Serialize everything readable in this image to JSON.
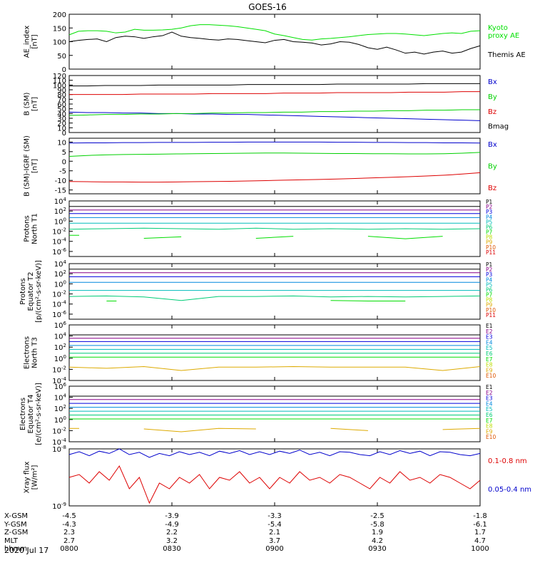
{
  "title": "GOES-16",
  "date_label": "2020 Jul 17",
  "colors": {
    "black": "#000000",
    "green": "#00e000",
    "blue": "#0000cc",
    "red": "#dd0000",
    "p": [
      "#000000",
      "#880088",
      "#0000dd",
      "#0088dd",
      "#00bbbb",
      "#00cc77",
      "#00dd00",
      "#bbdd00",
      "#ddaa00",
      "#dd5500",
      "#dd0000"
    ]
  },
  "x_axis": {
    "ticks": [
      "0800",
      "0830",
      "0900",
      "0930",
      "1000"
    ],
    "rows": [
      {
        "label": "X-GSM",
        "values": [
          "-4.5",
          "-3.9",
          "-3.3",
          "-2.5",
          "-1.8"
        ]
      },
      {
        "label": "Y-GSM",
        "values": [
          "-4.3",
          "-4.9",
          "-5.4",
          "-5.8",
          "-6.1"
        ]
      },
      {
        "label": "Z-GSM",
        "values": [
          "2.3",
          "2.2",
          "2.1",
          "1.9",
          "1.7"
        ]
      },
      {
        "label": "MLT",
        "values": [
          "2.7",
          "3.2",
          "3.7",
          "4.2",
          "4.7"
        ]
      },
      {
        "label": "hhmm",
        "values": [
          "0800",
          "0830",
          "0900",
          "0930",
          "1000"
        ]
      }
    ]
  },
  "chart_data": [
    {
      "type": "line",
      "ylabel": "AE_index\n[nT]",
      "ylim": [
        0,
        200
      ],
      "yticks": [
        "0",
        "50",
        "100",
        "150",
        "200"
      ],
      "series": [
        {
          "name": "Kyoto\nproxy AE",
          "color": "#00e000",
          "values": [
            125,
            138,
            140,
            140,
            138,
            132,
            135,
            145,
            142,
            142,
            143,
            145,
            150,
            158,
            162,
            162,
            160,
            158,
            155,
            150,
            145,
            140,
            128,
            122,
            115,
            108,
            106,
            110,
            112,
            115,
            118,
            122,
            126,
            128,
            130,
            130,
            128,
            125,
            122,
            126,
            130,
            132,
            130,
            138,
            140
          ]
        },
        {
          "name": "Themis AE",
          "color": "#000000",
          "values": [
            100,
            105,
            108,
            110,
            100,
            115,
            120,
            118,
            112,
            118,
            122,
            135,
            120,
            115,
            112,
            108,
            106,
            110,
            108,
            104,
            100,
            96,
            105,
            108,
            100,
            98,
            95,
            88,
            92,
            100,
            98,
            90,
            78,
            72,
            80,
            70,
            58,
            62,
            55,
            62,
            66,
            58,
            62,
            75,
            85
          ]
        }
      ]
    },
    {
      "type": "line",
      "ylabel": "B (SM)\n[nT]",
      "ylim": [
        0,
        120
      ],
      "yticks": [
        "0",
        "10",
        "20",
        "30",
        "40",
        "50",
        "60",
        "70",
        "80",
        "90",
        "100",
        "110",
        "120"
      ],
      "series": [
        {
          "name": "Bx",
          "color": "#0000cc",
          "values": [
            43,
            42,
            42,
            41,
            41,
            40,
            40,
            39,
            39,
            38,
            38,
            37,
            36,
            35,
            34,
            33,
            32,
            31,
            30,
            29,
            28,
            27,
            26,
            25
          ]
        },
        {
          "name": "By",
          "color": "#00d000",
          "values": [
            36,
            37,
            38,
            38,
            39,
            39,
            40,
            40,
            41,
            41,
            42,
            42,
            43,
            43,
            44,
            44,
            45,
            45,
            46,
            46,
            47,
            47,
            48,
            48
          ]
        },
        {
          "name": "Bz",
          "color": "#dd0000",
          "values": [
            80,
            80,
            80,
            80,
            81,
            81,
            81,
            81,
            82,
            82,
            82,
            82,
            83,
            83,
            83,
            84,
            84,
            84,
            84,
            85,
            85,
            85,
            86,
            86
          ]
        },
        {
          "name": "Bmag",
          "color": "#000000",
          "values": [
            98,
            98,
            99,
            99,
            99,
            100,
            100,
            100,
            100,
            100,
            101,
            101,
            101,
            101,
            101,
            102,
            102,
            102,
            102,
            102,
            103,
            103,
            103,
            103
          ]
        }
      ]
    },
    {
      "type": "line",
      "ylabel": "B (SM)-IGRF (SM)\n[nT]",
      "ylim": [
        -17,
        12
      ],
      "yticks": [
        "-15",
        "-10",
        "-5",
        "0",
        "5",
        "10"
      ],
      "series": [
        {
          "name": "Bx",
          "color": "#0000cc",
          "values": [
            9.5,
            9.6,
            9.6,
            9.7,
            9.7,
            9.8,
            9.8,
            9.8,
            9.9,
            9.9,
            10,
            10,
            10,
            10,
            10,
            9.9,
            9.9,
            9.8,
            9.8,
            9.7,
            9.7,
            9.6,
            9.6,
            9.5
          ]
        },
        {
          "name": "By",
          "color": "#00d000",
          "values": [
            2.5,
            3.0,
            3.3,
            3.5,
            3.6,
            3.7,
            3.8,
            3.9,
            4.0,
            4.1,
            4.2,
            4.3,
            4.3,
            4.2,
            4.1,
            4.0,
            4.0,
            3.9,
            3.9,
            3.8,
            3.8,
            3.9,
            4.2,
            4.6
          ]
        },
        {
          "name": "Bz",
          "color": "#dd0000",
          "values": [
            -10.6,
            -10.7,
            -10.8,
            -10.8,
            -10.9,
            -10.9,
            -10.8,
            -10.7,
            -10.6,
            -10.5,
            -10.3,
            -10.1,
            -9.9,
            -9.7,
            -9.5,
            -9.3,
            -9.0,
            -8.7,
            -8.4,
            -8.1,
            -7.7,
            -7.3,
            -6.7,
            -6.0
          ]
        }
      ]
    },
    {
      "type": "line",
      "log": true,
      "ylabel": "Protons\nNorth T1",
      "ylim_exp": [
        -7,
        4
      ],
      "ytick_exps": [
        -6,
        -4,
        -2,
        0,
        2,
        4
      ],
      "legend": [
        "P1",
        "P2",
        "P3",
        "P4",
        "P5",
        "P6",
        "P7",
        "P8",
        "P9",
        "P10",
        "P11"
      ],
      "series_exp": [
        [
          2.9,
          2.9,
          2.9,
          2.9,
          2.9,
          2.9,
          2.9,
          2.9,
          2.9,
          2.9,
          2.9,
          2.9
        ],
        [
          2.2,
          2.2,
          2.2,
          2.2,
          2.2,
          2.2,
          2.2,
          2.2,
          2.2,
          2.2,
          2.2,
          2.2
        ],
        [
          1.5,
          1.5,
          1.5,
          1.5,
          1.5,
          1.5,
          1.5,
          1.5,
          1.5,
          1.5,
          1.5,
          1.5
        ],
        [
          0.7,
          0.7,
          0.7,
          0.7,
          0.7,
          0.7,
          0.7,
          0.7,
          0.7,
          0.7,
          0.7,
          0.7
        ],
        [
          -0.4,
          -0.4,
          -0.4,
          -0.4,
          -0.4,
          -0.4,
          -0.4,
          -0.4,
          -0.4,
          -0.4,
          -0.4,
          -0.4
        ],
        [
          -1.6,
          -1.5,
          -1.4,
          -1.5,
          -1.6,
          -1.4,
          -1.6,
          -1.5,
          -1.6,
          -1.5,
          -1.6,
          -1.5
        ],
        [
          -2.8,
          null,
          -3.4,
          -3.1,
          null,
          -3.4,
          -3.0,
          null,
          -3.0,
          -3.5,
          -3.0,
          null
        ],
        [
          null,
          null,
          null,
          null,
          null,
          null,
          null,
          null,
          null,
          null,
          null,
          null
        ],
        [
          null,
          null,
          null,
          null,
          null,
          null,
          null,
          null,
          null,
          null,
          null,
          null
        ],
        [
          null,
          null,
          null,
          null,
          null,
          null,
          null,
          null,
          null,
          null,
          null,
          null
        ],
        [
          null,
          null,
          null,
          null,
          null,
          null,
          null,
          null,
          null,
          null,
          null,
          null
        ]
      ]
    },
    {
      "type": "line",
      "log": true,
      "ylabel": "Protons\nEquator T2\n[p/(cm²-s-sr-keV)]",
      "ylim_exp": [
        -7,
        4
      ],
      "ytick_exps": [
        -6,
        -4,
        -2,
        0,
        2,
        4
      ],
      "legend": [
        "P1",
        "P2",
        "P3",
        "P4",
        "P5",
        "P6",
        "P7",
        "P8",
        "P9",
        "P10",
        "P11"
      ],
      "series_exp": [
        [
          2.9,
          2.9,
          2.9,
          2.9,
          2.9,
          2.9,
          2.9,
          2.9,
          2.9,
          2.9,
          2.9,
          2.9
        ],
        [
          2.2,
          2.2,
          2.2,
          2.2,
          2.2,
          2.2,
          2.2,
          2.2,
          2.2,
          2.2,
          2.2,
          2.2
        ],
        [
          1.4,
          1.4,
          1.4,
          1.4,
          1.4,
          1.4,
          1.4,
          1.4,
          1.4,
          1.4,
          1.4,
          1.4
        ],
        [
          0.3,
          0.3,
          0.3,
          0.3,
          0.3,
          0.3,
          0.3,
          0.3,
          0.3,
          0.3,
          0.3,
          0.3
        ],
        [
          -1.3,
          -1.3,
          -1.3,
          -1.3,
          -1.3,
          -1.3,
          -1.3,
          -1.3,
          -1.3,
          -1.3,
          -1.3,
          -1.3
        ],
        [
          -2.5,
          -2.4,
          -2.6,
          -3.3,
          -2.5,
          -2.5,
          -2.4,
          -2.6,
          -2.5,
          -2.6,
          -2.5,
          -2.4
        ],
        [
          null,
          -3.4,
          null,
          null,
          null,
          null,
          null,
          -3.3,
          -3.4,
          -3.4,
          null,
          null
        ],
        [
          null,
          null,
          null,
          null,
          null,
          null,
          null,
          null,
          null,
          null,
          null,
          null
        ],
        [
          null,
          null,
          null,
          null,
          null,
          null,
          null,
          null,
          null,
          null,
          null,
          null
        ],
        [
          null,
          null,
          null,
          null,
          null,
          null,
          null,
          null,
          null,
          null,
          null,
          null
        ],
        [
          null,
          null,
          null,
          null,
          null,
          null,
          null,
          null,
          null,
          null,
          null,
          null
        ]
      ]
    },
    {
      "type": "line",
      "log": true,
      "ylabel": "Electrons\nNorth T3",
      "ylim_exp": [
        -4,
        6
      ],
      "ytick_exps": [
        -4,
        -2,
        0,
        2,
        4,
        6
      ],
      "legend": [
        "E1",
        "E2",
        "E3",
        "E4",
        "E5",
        "E6",
        "E7",
        "E8",
        "E9",
        "E10"
      ],
      "series_exp": [
        [
          4.2,
          4.2,
          4.2,
          4.2,
          4.2,
          4.2,
          4.2,
          4.2,
          4.2,
          4.2,
          4.2,
          4.2
        ],
        [
          3.6,
          3.6,
          3.6,
          3.6,
          3.6,
          3.6,
          3.6,
          3.6,
          3.6,
          3.6,
          3.6,
          3.6
        ],
        [
          3.0,
          3.0,
          3.0,
          3.0,
          3.0,
          3.0,
          3.0,
          3.0,
          3.0,
          3.0,
          3.0,
          3.0
        ],
        [
          2.3,
          2.3,
          2.3,
          2.3,
          2.3,
          2.3,
          2.3,
          2.3,
          2.3,
          2.3,
          2.3,
          2.3
        ],
        [
          1.6,
          1.6,
          1.6,
          1.6,
          1.6,
          1.6,
          1.6,
          1.6,
          1.6,
          1.6,
          1.6,
          1.6
        ],
        [
          0.9,
          0.9,
          0.9,
          0.9,
          0.9,
          0.9,
          0.9,
          0.9,
          0.9,
          0.9,
          0.9,
          0.9
        ],
        [
          0.2,
          0.2,
          0.2,
          0.2,
          0.2,
          0.2,
          0.2,
          0.2,
          0.2,
          0.2,
          0.2,
          0.2
        ],
        [
          null,
          null,
          null,
          null,
          null,
          null,
          null,
          null,
          null,
          null,
          null,
          null
        ],
        [
          -1.6,
          -1.8,
          -1.5,
          -2.2,
          -1.6,
          -1.6,
          -1.5,
          -1.6,
          -1.6,
          -1.6,
          -2.2,
          -1.5
        ],
        [
          null,
          null,
          null,
          null,
          null,
          null,
          null,
          null,
          null,
          null,
          null,
          null
        ]
      ]
    },
    {
      "type": "line",
      "log": true,
      "ylabel": "Electrons\nEquator T4\n[e/(cm²-s-sr-keV)]",
      "ylim_exp": [
        -4,
        6
      ],
      "ytick_exps": [
        -4,
        -2,
        0,
        2,
        4,
        6
      ],
      "legend": [
        "E1",
        "E2",
        "E3",
        "E4",
        "E5",
        "E6",
        "E7",
        "E8",
        "E9",
        "E10"
      ],
      "series_exp": [
        [
          4.2,
          4.2,
          4.2,
          4.2,
          4.2,
          4.2,
          4.2,
          4.2,
          4.2,
          4.2,
          4.2,
          4.2
        ],
        [
          3.6,
          3.6,
          3.6,
          3.6,
          3.6,
          3.6,
          3.6,
          3.6,
          3.6,
          3.6,
          3.6,
          3.6
        ],
        [
          2.9,
          2.9,
          2.9,
          2.9,
          2.9,
          2.9,
          2.9,
          2.9,
          2.9,
          2.9,
          2.9,
          2.9
        ],
        [
          2.2,
          2.2,
          2.2,
          2.2,
          2.2,
          2.2,
          2.2,
          2.2,
          2.2,
          2.2,
          2.2,
          2.2
        ],
        [
          1.5,
          1.5,
          1.5,
          1.5,
          1.5,
          1.5,
          1.5,
          1.5,
          1.5,
          1.5,
          1.5,
          1.5
        ],
        [
          0.8,
          0.8,
          0.8,
          0.8,
          0.8,
          0.8,
          0.8,
          0.8,
          0.8,
          0.8,
          0.8,
          0.8
        ],
        [
          0.1,
          0.1,
          0.1,
          0.1,
          0.1,
          0.1,
          0.1,
          0.1,
          0.1,
          0.1,
          0.1,
          0.1
        ],
        [
          null,
          null,
          null,
          null,
          null,
          null,
          null,
          null,
          null,
          null,
          null,
          null
        ],
        [
          -1.6,
          null,
          -1.7,
          -2.2,
          -1.6,
          -1.7,
          null,
          -1.6,
          -2.0,
          null,
          -1.8,
          -1.6
        ],
        [
          null,
          null,
          null,
          null,
          null,
          null,
          null,
          null,
          null,
          null,
          null,
          null
        ]
      ]
    },
    {
      "type": "line",
      "log": true,
      "ylabel": "Xray flux\n[W/m²]",
      "ylim_exp": [
        -9,
        -8
      ],
      "ytick_exps": [
        -9,
        -8
      ],
      "series": [
        {
          "name": "0.1-0.8 nm",
          "color": "#dd0000",
          "values": [
            -8.5,
            -8.45,
            -8.6,
            -8.4,
            -8.55,
            -8.3,
            -8.7,
            -8.5,
            -8.95,
            -8.6,
            -8.7,
            -8.5,
            -8.6,
            -8.45,
            -8.7,
            -8.5,
            -8.55,
            -8.4,
            -8.6,
            -8.5,
            -8.7,
            -8.5,
            -8.6,
            -8.4,
            -8.55,
            -8.5,
            -8.6,
            -8.45,
            -8.5,
            -8.6,
            -8.7,
            -8.5,
            -8.6,
            -8.4,
            -8.55,
            -8.5,
            -8.6,
            -8.45,
            -8.5,
            -8.6,
            -8.7,
            -8.55
          ]
        },
        {
          "name": "0.05-0.4 nm",
          "color": "#0000cc",
          "values": [
            -8.1,
            -8.05,
            -8.12,
            -8.04,
            -8.08,
            -8.0,
            -8.1,
            -8.06,
            -8.15,
            -8.08,
            -8.12,
            -8.05,
            -8.1,
            -8.06,
            -8.12,
            -8.04,
            -8.08,
            -8.03,
            -8.1,
            -8.05,
            -8.1,
            -8.04,
            -8.08,
            -8.02,
            -8.1,
            -8.06,
            -8.12,
            -8.05,
            -8.06,
            -8.1,
            -8.12,
            -8.05,
            -8.1,
            -8.03,
            -8.08,
            -8.04,
            -8.12,
            -8.05,
            -8.06,
            -8.1,
            -8.12,
            -8.08
          ]
        }
      ]
    }
  ]
}
